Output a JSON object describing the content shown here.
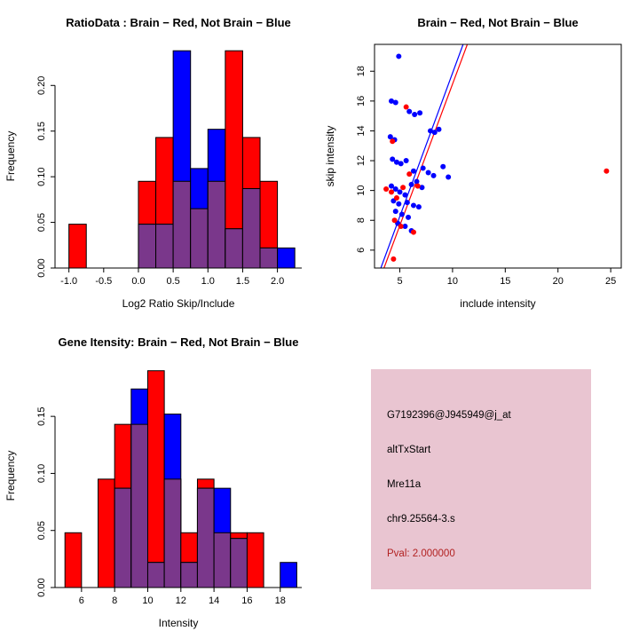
{
  "figure": {
    "background": "#ffffff",
    "panel_count": 4
  },
  "colors": {
    "brain": "#FF0000",
    "not_brain": "#0000FF",
    "overlap": "#7A378B",
    "axis": "#000000"
  },
  "chart_data": [
    {
      "type": "bar",
      "variant": "overlaid-histogram",
      "title": "RatioData : Brain − Red, Not Brain − Blue",
      "xlabel": "Log2 Ratio Skip/Include",
      "ylabel": "Frequency",
      "xlim": [
        -1.2,
        2.35
      ],
      "ylim": [
        0,
        0.245
      ],
      "xticks": [
        -1,
        -0.5,
        0,
        0.5,
        1,
        1.5,
        2
      ],
      "xtick_labels": [
        "-1.0",
        "-0.5",
        "0.0",
        "0.5",
        "1.0",
        "1.5",
        "2.0"
      ],
      "yticks": [
        0,
        0.05,
        0.1,
        0.15,
        0.2
      ],
      "ytick_labels": [
        "0.00",
        "0.05",
        "0.10",
        "0.15",
        "0.20"
      ],
      "bin_width": 0.25,
      "grid": false,
      "colors": {
        "red": "#FF0000",
        "blue": "#0000FF",
        "overlap": "#7A378B"
      },
      "legend": [
        {
          "name": "Brain",
          "color": "#FF0000"
        },
        {
          "name": "Not Brain",
          "color": "#0000FF"
        }
      ],
      "bins": [
        {
          "x": -1.0,
          "red": 0.048,
          "blue": 0
        },
        {
          "x": 0.0,
          "red": 0.095,
          "blue": 0.048
        },
        {
          "x": 0.25,
          "red": 0.143,
          "blue": 0.048
        },
        {
          "x": 0.5,
          "red": 0.095,
          "blue": 0.238
        },
        {
          "x": 0.75,
          "red": 0.065,
          "blue": 0.109
        },
        {
          "x": 1.0,
          "red": 0.095,
          "blue": 0.152
        },
        {
          "x": 1.25,
          "red": 0.238,
          "blue": 0.043
        },
        {
          "x": 1.5,
          "red": 0.143,
          "blue": 0.087
        },
        {
          "x": 1.75,
          "red": 0.095,
          "blue": 0.022
        },
        {
          "x": 2.0,
          "red": 0,
          "blue": 0.022
        }
      ]
    },
    {
      "type": "scatter",
      "title": "Brain − Red, Not Brain − Blue",
      "xlabel": "include intensity",
      "ylabel": "skip intensity",
      "xlim": [
        2.6,
        26
      ],
      "ylim": [
        4.8,
        19.8
      ],
      "xticks": [
        5,
        10,
        15,
        20,
        25
      ],
      "xtick_labels": [
        "5",
        "10",
        "15",
        "20",
        "25"
      ],
      "yticks": [
        6,
        8,
        10,
        12,
        14,
        16,
        18
      ],
      "ytick_labels": [
        "6",
        "8",
        "10",
        "12",
        "14",
        "16",
        "18"
      ],
      "grid": false,
      "boxed": true,
      "series": [
        {
          "name": "Not Brain",
          "color": "#0000FF",
          "points": [
            [
              4.9,
              19.0
            ],
            [
              4.2,
              16.0
            ],
            [
              4.6,
              15.9
            ],
            [
              5.9,
              15.3
            ],
            [
              6.4,
              15.1
            ],
            [
              6.9,
              15.2
            ],
            [
              4.1,
              13.6
            ],
            [
              4.5,
              13.4
            ],
            [
              7.9,
              14.0
            ],
            [
              8.3,
              13.9
            ],
            [
              8.7,
              14.1
            ],
            [
              4.3,
              12.1
            ],
            [
              4.7,
              11.9
            ],
            [
              5.1,
              11.8
            ],
            [
              5.6,
              12.0
            ],
            [
              6.3,
              11.3
            ],
            [
              7.2,
              11.5
            ],
            [
              7.7,
              11.2
            ],
            [
              8.2,
              11.0
            ],
            [
              9.1,
              11.6
            ],
            [
              4.2,
              10.3
            ],
            [
              4.6,
              10.1
            ],
            [
              5.0,
              9.9
            ],
            [
              5.5,
              9.7
            ],
            [
              6.1,
              10.4
            ],
            [
              6.6,
              10.6
            ],
            [
              7.1,
              10.2
            ],
            [
              9.6,
              10.9
            ],
            [
              4.4,
              9.3
            ],
            [
              4.9,
              9.1
            ],
            [
              5.7,
              9.2
            ],
            [
              6.3,
              9.0
            ],
            [
              6.8,
              8.9
            ],
            [
              4.6,
              8.6
            ],
            [
              5.2,
              8.4
            ],
            [
              5.8,
              8.2
            ],
            [
              4.8,
              7.8
            ],
            [
              5.5,
              7.6
            ],
            [
              6.1,
              7.3
            ]
          ]
        },
        {
          "name": "Brain",
          "color": "#FF0000",
          "points": [
            [
              5.6,
              15.6
            ],
            [
              4.3,
              13.3
            ],
            [
              3.7,
              10.1
            ],
            [
              4.2,
              9.9
            ],
            [
              5.3,
              10.2
            ],
            [
              6.7,
              10.3
            ],
            [
              4.7,
              9.5
            ],
            [
              4.5,
              8.0
            ],
            [
              5.1,
              7.6
            ],
            [
              6.3,
              7.2
            ],
            [
              24.6,
              11.3
            ],
            [
              5.9,
              11.1
            ],
            [
              4.4,
              5.4
            ]
          ]
        }
      ],
      "fit_lines": [
        {
          "name": "not-brain-fit",
          "color": "#0000FF",
          "x1": 3.2,
          "y1": 4.8,
          "x2": 11.0,
          "y2": 19.8
        },
        {
          "name": "brain-fit",
          "color": "#FF0000",
          "x1": 3.5,
          "y1": 4.8,
          "x2": 11.4,
          "y2": 19.8
        }
      ]
    },
    {
      "type": "bar",
      "variant": "overlaid-histogram",
      "title": "Gene Itensity: Brain − Red, Not Brain − Blue",
      "xlabel": "Intensity",
      "ylabel": "Frequency",
      "xlim": [
        4.4,
        19.3
      ],
      "ylim": [
        0,
        0.196
      ],
      "xticks": [
        6,
        8,
        10,
        12,
        14,
        16,
        18
      ],
      "xtick_labels": [
        "6",
        "8",
        "10",
        "12",
        "14",
        "16",
        "18"
      ],
      "yticks": [
        0,
        0.05,
        0.1,
        0.15
      ],
      "ytick_labels": [
        "0.00",
        "0.05",
        "0.10",
        "0.15"
      ],
      "bin_width": 1,
      "grid": false,
      "colors": {
        "red": "#FF0000",
        "blue": "#0000FF",
        "overlap": "#7A378B"
      },
      "legend": [
        {
          "name": "Brain",
          "color": "#FF0000"
        },
        {
          "name": "Not Brain",
          "color": "#0000FF"
        }
      ],
      "bins": [
        {
          "x": 5,
          "red": 0.048,
          "blue": 0
        },
        {
          "x": 7,
          "red": 0.095,
          "blue": 0
        },
        {
          "x": 8,
          "red": 0.143,
          "blue": 0.087
        },
        {
          "x": 9,
          "red": 0.143,
          "blue": 0.174
        },
        {
          "x": 10,
          "red": 0.19,
          "blue": 0.022
        },
        {
          "x": 11,
          "red": 0.095,
          "blue": 0.152
        },
        {
          "x": 12,
          "red": 0.048,
          "blue": 0.022
        },
        {
          "x": 13,
          "red": 0.095,
          "blue": 0.087
        },
        {
          "x": 14,
          "red": 0.048,
          "blue": 0.087
        },
        {
          "x": 15,
          "red": 0.048,
          "blue": 0.043
        },
        {
          "x": 16,
          "red": 0.048,
          "blue": 0
        },
        {
          "x": 18,
          "red": 0,
          "blue": 0.022
        }
      ]
    }
  ],
  "info_panel": {
    "bg_color": "#E9C5D1",
    "pval_color": "#B22222",
    "lines": [
      "G7192396@J945949@j_at",
      "altTxStart",
      "Mre11a",
      "chr9.25564-3.s"
    ],
    "pval": "Pval: 2.000000"
  }
}
